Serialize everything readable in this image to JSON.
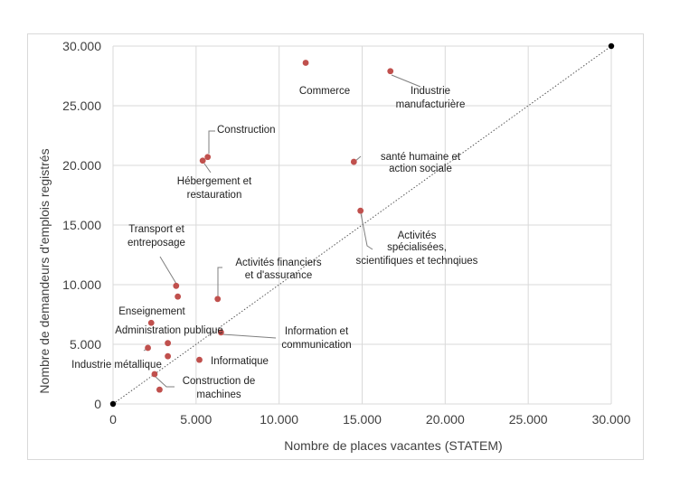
{
  "chart_data": {
    "type": "scatter",
    "title": "",
    "xlabel": "Nombre de places vacantes (STATEM)",
    "ylabel": "Nombre de demandeurs d'emplois registrés",
    "xlim": [
      0,
      30000
    ],
    "ylim": [
      0,
      30000
    ],
    "x_ticks": [
      "0",
      "5.000",
      "10.000",
      "15.000",
      "20.000",
      "25.000",
      "30.000"
    ],
    "y_ticks": [
      "0",
      "5.000",
      "10.000",
      "15.000",
      "20.000",
      "25.000",
      "30.000"
    ],
    "grid": true,
    "marker_color": "#c0504d",
    "reference_line": {
      "from": [
        0,
        0
      ],
      "to": [
        30000,
        30000
      ],
      "style": "dotted",
      "color": "#595959"
    },
    "points": [
      {
        "x": 11600,
        "y": 28600,
        "label": "Commerce"
      },
      {
        "x": 16700,
        "y": 27900,
        "label": "Industrie manufacturière"
      },
      {
        "x": 5700,
        "y": 20700,
        "label": "Construction"
      },
      {
        "x": 5400,
        "y": 20400,
        "label": "Hébergement et restauration"
      },
      {
        "x": 14500,
        "y": 20300,
        "label": "santé humaine et action sociale"
      },
      {
        "x": 14900,
        "y": 16200,
        "label": "Activités spécialisées, scientifiques et technqiues"
      },
      {
        "x": 3800,
        "y": 9900,
        "label": "Transport et entreposage"
      },
      {
        "x": 3900,
        "y": 9000,
        "label": ""
      },
      {
        "x": 6300,
        "y": 8800,
        "label": "Activités financiers et d'assurance"
      },
      {
        "x": 2300,
        "y": 6800,
        "label": "Enseignement"
      },
      {
        "x": 6500,
        "y": 6000,
        "label": "Information et communication"
      },
      {
        "x": 3300,
        "y": 5100,
        "label": "Administration publique"
      },
      {
        "x": 2100,
        "y": 4700,
        "label": "Industrie métallique"
      },
      {
        "x": 3300,
        "y": 4000,
        "label": ""
      },
      {
        "x": 5200,
        "y": 3700,
        "label": "Informatique"
      },
      {
        "x": 2500,
        "y": 2500,
        "label": "Construction de machines"
      },
      {
        "x": 2800,
        "y": 1200,
        "label": ""
      }
    ]
  }
}
